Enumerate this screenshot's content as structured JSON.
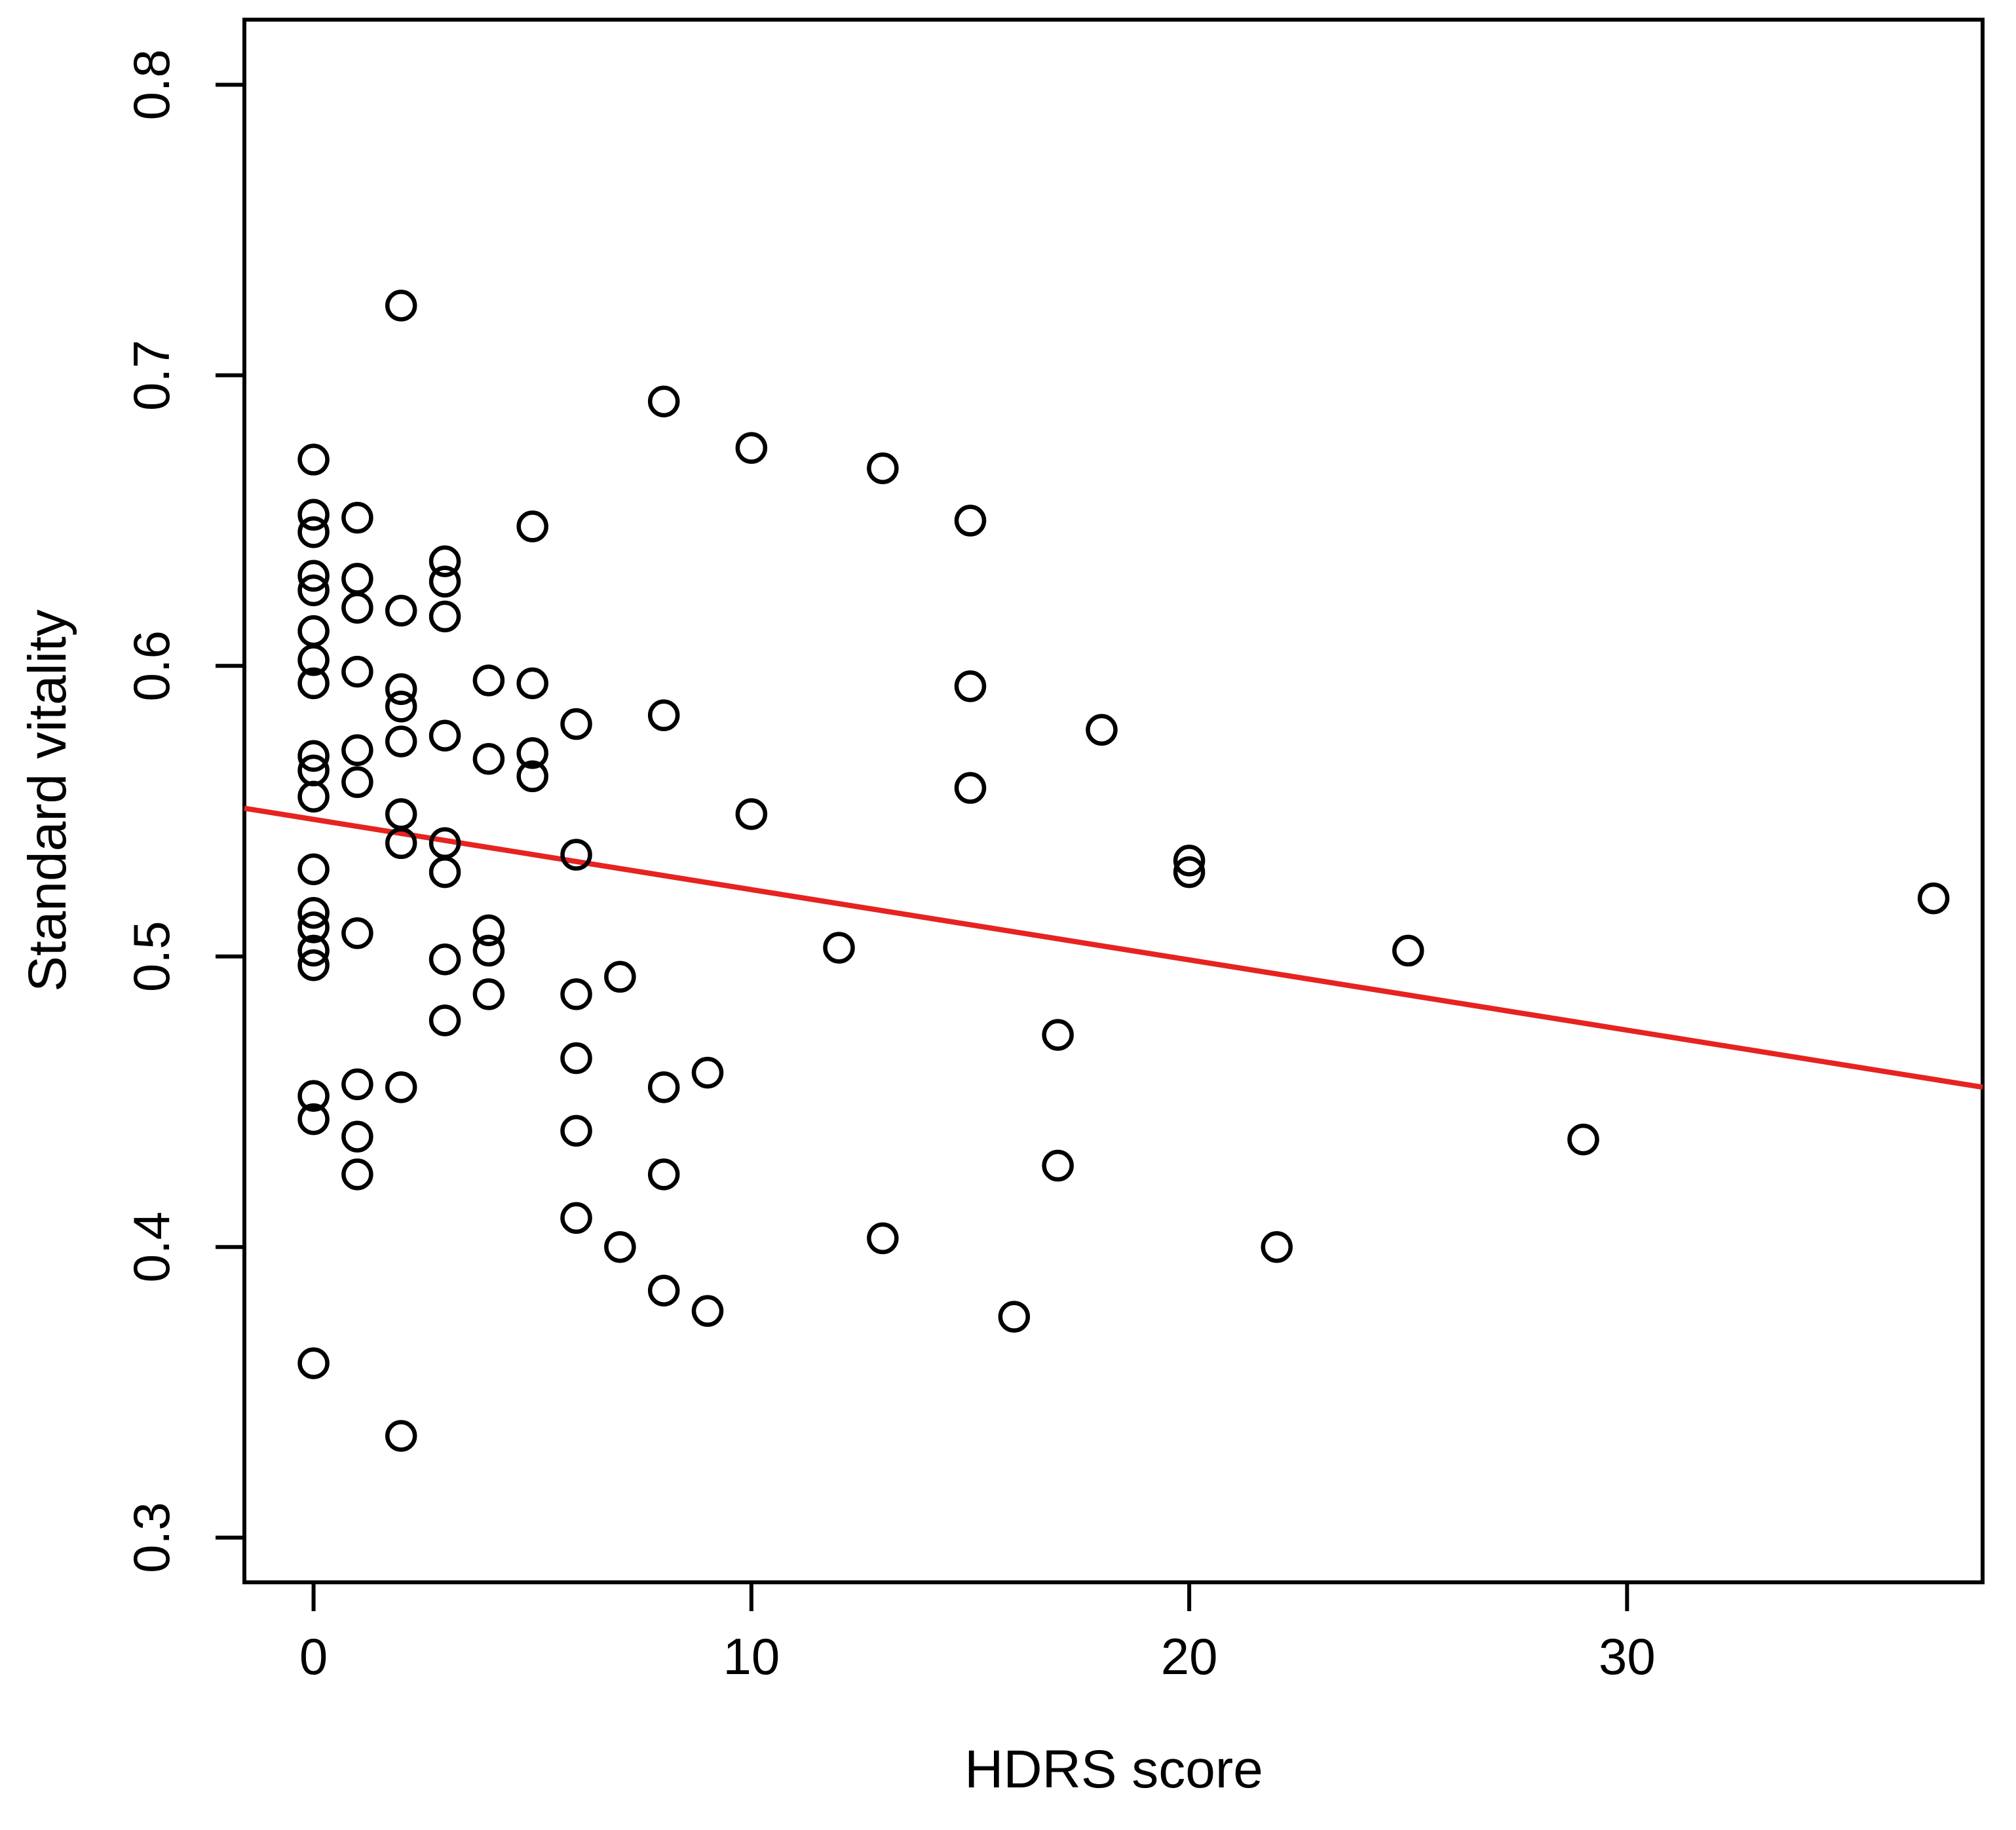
{
  "chart_data": {
    "type": "scatter",
    "title": "",
    "xlabel": "HDRS score",
    "ylabel": "Standard vitality",
    "x_ticks": [
      0,
      10,
      20,
      30
    ],
    "y_ticks": [
      0.3,
      0.4,
      0.5,
      0.6,
      0.7,
      0.8
    ],
    "xlim": [
      -1.58,
      38.12
    ],
    "ylim": [
      0.2846,
      0.8224
    ],
    "grid": false,
    "legend": "none",
    "marker": "open-circle",
    "points": [
      [
        0,
        0.671
      ],
      [
        0,
        0.652
      ],
      [
        0,
        0.646
      ],
      [
        0,
        0.631
      ],
      [
        0,
        0.626
      ],
      [
        0,
        0.612
      ],
      [
        0,
        0.602
      ],
      [
        0,
        0.594
      ],
      [
        0,
        0.569
      ],
      [
        0,
        0.564
      ],
      [
        0,
        0.555
      ],
      [
        0,
        0.53
      ],
      [
        0,
        0.515
      ],
      [
        0,
        0.51
      ],
      [
        0,
        0.502
      ],
      [
        0,
        0.497
      ],
      [
        0,
        0.452
      ],
      [
        0,
        0.444
      ],
      [
        0,
        0.36
      ],
      [
        1,
        0.651
      ],
      [
        1,
        0.63
      ],
      [
        1,
        0.62
      ],
      [
        1,
        0.598
      ],
      [
        1,
        0.571
      ],
      [
        1,
        0.56
      ],
      [
        1,
        0.508
      ],
      [
        1,
        0.456
      ],
      [
        1,
        0.438
      ],
      [
        1,
        0.425
      ],
      [
        2,
        0.724
      ],
      [
        2,
        0.619
      ],
      [
        2,
        0.592
      ],
      [
        2,
        0.586
      ],
      [
        2,
        0.574
      ],
      [
        2,
        0.549
      ],
      [
        2,
        0.539
      ],
      [
        2,
        0.455
      ],
      [
        2,
        0.335
      ],
      [
        3,
        0.636
      ],
      [
        3,
        0.629
      ],
      [
        3,
        0.617
      ],
      [
        3,
        0.576
      ],
      [
        3,
        0.539
      ],
      [
        3,
        0.529
      ],
      [
        3,
        0.499
      ],
      [
        3,
        0.478
      ],
      [
        4,
        0.595
      ],
      [
        4,
        0.568
      ],
      [
        4,
        0.509
      ],
      [
        4,
        0.502
      ],
      [
        4,
        0.487
      ],
      [
        5,
        0.648
      ],
      [
        5,
        0.594
      ],
      [
        5,
        0.57
      ],
      [
        5,
        0.562
      ],
      [
        6,
        0.58
      ],
      [
        6,
        0.535
      ],
      [
        6,
        0.487
      ],
      [
        6,
        0.465
      ],
      [
        6,
        0.44
      ],
      [
        6,
        0.41
      ],
      [
        7,
        0.493
      ],
      [
        7,
        0.4
      ],
      [
        8,
        0.691
      ],
      [
        8,
        0.583
      ],
      [
        8,
        0.455
      ],
      [
        8,
        0.425
      ],
      [
        8,
        0.385
      ],
      [
        9,
        0.46
      ],
      [
        9,
        0.378
      ],
      [
        10,
        0.675
      ],
      [
        10,
        0.549
      ],
      [
        12,
        0.503
      ],
      [
        13,
        0.668
      ],
      [
        13,
        0.403
      ],
      [
        15,
        0.65
      ],
      [
        15,
        0.593
      ],
      [
        15,
        0.558
      ],
      [
        16,
        0.376
      ],
      [
        17,
        0.473
      ],
      [
        17,
        0.428
      ],
      [
        18,
        0.578
      ],
      [
        20,
        0.533
      ],
      [
        20,
        0.529
      ],
      [
        22,
        0.4
      ],
      [
        25,
        0.502
      ],
      [
        29,
        0.437
      ],
      [
        37,
        0.52
      ]
    ],
    "regression_line": {
      "x1": -1.58,
      "y1": 0.551,
      "x2": 38.12,
      "y2": 0.455
    },
    "colors": {
      "point": "#000000",
      "line": "#e62320",
      "axis": "#000000",
      "background": "#ffffff"
    }
  }
}
